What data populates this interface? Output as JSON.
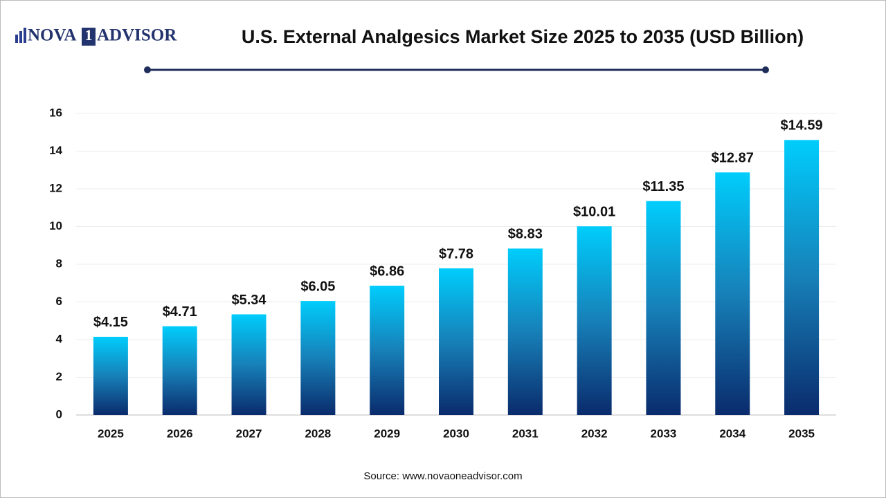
{
  "chart_data": {
    "type": "bar",
    "title": "U.S. External Analgesics Market Size 2025 to 2035  (USD Billion)",
    "logo": [
      "NOVA",
      "1",
      "ADVISOR"
    ],
    "source": "Source: www.novaoneadvisor.com",
    "categories": [
      "2025",
      "2026",
      "2027",
      "2028",
      "2029",
      "2030",
      "2031",
      "2032",
      "2033",
      "2034",
      "2035"
    ],
    "values": [
      4.15,
      4.71,
      5.34,
      6.05,
      6.86,
      7.78,
      8.83,
      10.01,
      11.35,
      12.87,
      14.59
    ],
    "value_labels": [
      "$4.15",
      "$4.71",
      "$5.34",
      "$6.05",
      "$6.86",
      "$7.78",
      "$8.83",
      "$10.01",
      "$11.35",
      "$12.87",
      "$14.59"
    ],
    "color": "#00cdfc",
    "color_bottom": "#0a2b6c",
    "ylim": [
      0,
      16
    ],
    "yticks": [
      0,
      2,
      4,
      6,
      8,
      10,
      12,
      14,
      16
    ],
    "grid": true
  }
}
